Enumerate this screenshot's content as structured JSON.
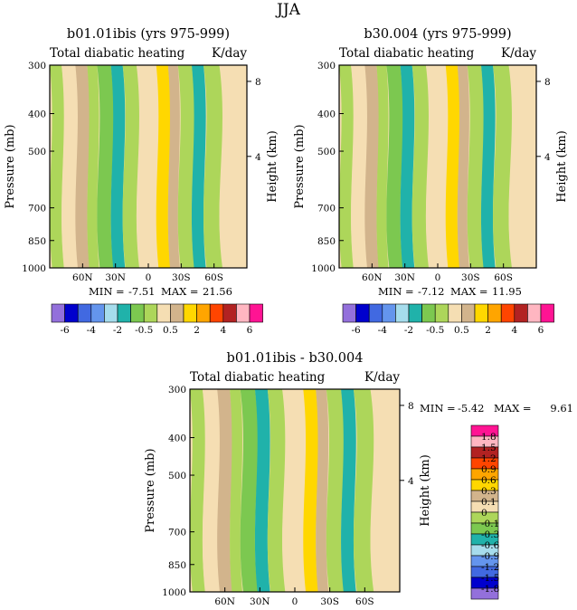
{
  "page": {
    "season": "JJA"
  },
  "colors": {
    "palette": [
      "#9370db",
      "#0000cd",
      "#4169e1",
      "#6495ed",
      "#a6dcec",
      "#20b2aa",
      "#7cc850",
      "#add65a",
      "#f5deb3",
      "#d2b48c",
      "#ffd700",
      "#ffa500",
      "#ff4500",
      "#b22222",
      "#ffb6c1",
      "#ff1493"
    ],
    "fill_light_green": "#add65a",
    "fill_green": "#7cc850",
    "fill_teal": "#20b2aa",
    "fill_wheat": "#f5deb3",
    "fill_tan": "#d2b48c",
    "fill_yellow": "#ffd700"
  },
  "common": {
    "variable": "Total diabatic heating",
    "units": "K/day",
    "ylabel_left": "Pressure (mb)",
    "ylabel_right": "Height (km)",
    "pressure_ticks": [
      "300",
      "400",
      "500",
      "700",
      "850",
      "1000"
    ],
    "height_ticks": [
      "8",
      "4"
    ],
    "lat_ticks": [
      "60N",
      "30N",
      "0",
      "30S",
      "60S"
    ]
  },
  "chart_data": [
    {
      "type": "heatmap",
      "title": "b01.01ibis (yrs 975-999)",
      "subtitle_left": "Total diabatic heating",
      "subtitle_right": "K/day",
      "ylabel": "Pressure (mb)",
      "ylabel_right": "Height (km)",
      "y_ticks": [
        "300",
        "400",
        "500",
        "700",
        "850",
        "1000"
      ],
      "x_ticks": [
        "60N",
        "30N",
        "0",
        "30S",
        "60S"
      ],
      "min_label": "MIN =",
      "min_value": "-7.51",
      "max_label": "MAX =",
      "max_value": "21.56",
      "colorbar_labels": [
        "-6",
        "-4",
        "-2",
        "-0.5",
        "0.5",
        "2",
        "4",
        "6"
      ]
    },
    {
      "type": "heatmap",
      "title": "b30.004 (yrs 975-999)",
      "subtitle_left": "Total diabatic heating",
      "subtitle_right": "K/day",
      "ylabel": "Pressure (mb)",
      "ylabel_right": "Height (km)",
      "y_ticks": [
        "300",
        "400",
        "500",
        "700",
        "850",
        "1000"
      ],
      "x_ticks": [
        "60N",
        "30N",
        "0",
        "30S",
        "60S"
      ],
      "min_label": "MIN =",
      "min_value": "-7.12",
      "max_label": "MAX =",
      "max_value": "11.95",
      "colorbar_labels": [
        "-6",
        "-4",
        "-2",
        "-0.5",
        "0.5",
        "2",
        "4",
        "6"
      ]
    },
    {
      "type": "heatmap",
      "title": "b01.01ibis - b30.004",
      "subtitle_left": "Total diabatic heating",
      "subtitle_right": "K/day",
      "ylabel": "Pressure (mb)",
      "ylabel_right": "Height (km)",
      "y_ticks": [
        "300",
        "400",
        "500",
        "700",
        "850",
        "1000"
      ],
      "x_ticks": [
        "60N",
        "30N",
        "0",
        "30S",
        "60S"
      ],
      "min_label": "MIN =",
      "min_value": "-5.42",
      "max_label": "MAX =",
      "max_value": "9.61",
      "colorbar_labels": [
        "1.8",
        "1.5",
        "1.2",
        "0.9",
        "0.6",
        "0.3",
        "0.1",
        "0",
        "-0.1",
        "-0.3",
        "-0.6",
        "-0.9",
        "-1.2",
        "-1.5",
        "-1.8"
      ]
    }
  ]
}
